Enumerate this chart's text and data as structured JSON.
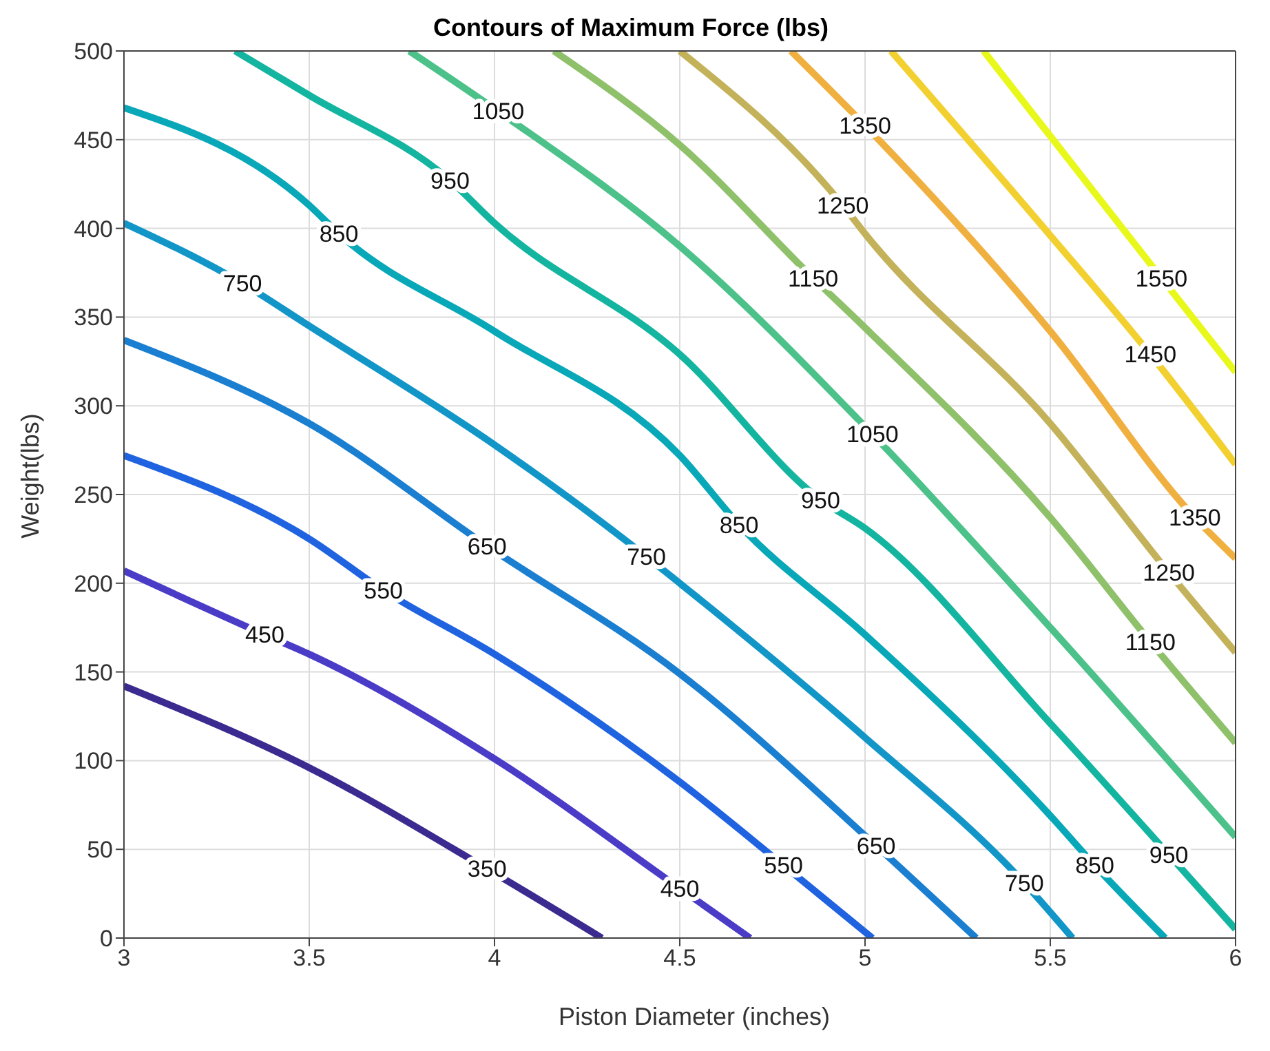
{
  "chart_data": {
    "type": "line",
    "title": "Contours of Maximum Force (lbs)",
    "xlabel": "Piston Diameter (inches)",
    "ylabel": "Weight(lbs)",
    "xlim": [
      3,
      6
    ],
    "xticks": [
      3,
      3.5,
      4,
      4.5,
      5,
      5.5,
      6
    ],
    "ylim": [
      0,
      500
    ],
    "yticks": [
      0,
      50,
      100,
      150,
      200,
      250,
      300,
      350,
      400,
      450,
      500
    ],
    "grid": true,
    "legend": false,
    "marker": "none",
    "line_style": "solid",
    "series": [
      {
        "color": "#3b2a8f",
        "x": [
          3,
          3.5,
          3.98,
          4.29
        ],
        "values": [
          142,
          96,
          39,
          0
        ]
      },
      {
        "color": "#4b3cc8",
        "x": [
          3,
          3.38,
          3.5,
          4,
          4.5,
          4.69
        ],
        "values": [
          207,
          171,
          160,
          101,
          28,
          0
        ]
      },
      {
        "color": "#1f63e0",
        "x": [
          3,
          3.5,
          3.7,
          4,
          4.5,
          4.78,
          5.02
        ],
        "values": [
          272,
          225,
          196,
          160,
          88,
          41,
          0
        ]
      },
      {
        "color": "#1a7fd0",
        "x": [
          3,
          3.5,
          3.98,
          4.5,
          5.03,
          5.3
        ],
        "values": [
          337,
          290,
          221,
          149,
          52,
          0
        ]
      },
      {
        "color": "#1296c8",
        "x": [
          3,
          3.32,
          3.5,
          4,
          4.41,
          4.5,
          5,
          5.43,
          5.56
        ],
        "values": [
          403,
          369,
          345,
          278,
          215,
          200,
          113,
          31,
          0
        ]
      },
      {
        "color": "#08a8b8",
        "x": [
          3,
          3.5,
          3.58,
          4,
          4.5,
          4.66,
          5,
          5.5,
          5.62,
          5.81
        ],
        "values": [
          468,
          413,
          397,
          342,
          272,
          233,
          171,
          69,
          41,
          0
        ]
      },
      {
        "color": "#14b5a0",
        "x": [
          3.3,
          3.5,
          3.88,
          4,
          4.5,
          4.88,
          5,
          5.5,
          5.82,
          6
        ],
        "values": [
          500,
          475,
          427,
          403,
          329,
          247,
          231,
          121,
          47,
          5
        ]
      },
      {
        "color": "#4cc28a",
        "x": [
          3.77,
          4.01,
          4.5,
          5.02,
          5.5,
          6
        ],
        "values": [
          500,
          466,
          390,
          284,
          175,
          57
        ]
      },
      {
        "color": "#8fc06a",
        "x": [
          4.16,
          4.5,
          4.86,
          5,
          5.5,
          5.77,
          6
        ],
        "values": [
          500,
          447,
          372,
          344,
          237,
          167,
          110
        ]
      },
      {
        "color": "#c3b25a",
        "x": [
          4.5,
          4.94,
          5,
          5.5,
          5.82,
          6
        ],
        "values": [
          500,
          413,
          397,
          290,
          206,
          161
        ]
      },
      {
        "color": "#f0b040",
        "x": [
          4.8,
          5,
          5.5,
          5.89,
          6
        ],
        "values": [
          500,
          458,
          342,
          237,
          214
        ]
      },
      {
        "color": "#f2d030",
        "x": [
          5.07,
          5.5,
          5.77,
          6
        ],
        "values": [
          500,
          396,
          329,
          267
        ]
      },
      {
        "color": "#e8f81a",
        "x": [
          5.32,
          5.5,
          5.8,
          6
        ],
        "values": [
          500,
          452,
          372,
          319
        ]
      }
    ],
    "annotations": [
      {
        "text": "350",
        "x": 3.98,
        "y": 39
      },
      {
        "text": "450",
        "x": 3.38,
        "y": 171
      },
      {
        "text": "450",
        "x": 4.5,
        "y": 28
      },
      {
        "text": "550",
        "x": 3.7,
        "y": 196
      },
      {
        "text": "550",
        "x": 4.78,
        "y": 41
      },
      {
        "text": "650",
        "x": 3.98,
        "y": 221
      },
      {
        "text": "650",
        "x": 5.03,
        "y": 52
      },
      {
        "text": "750",
        "x": 3.32,
        "y": 369
      },
      {
        "text": "750",
        "x": 4.41,
        "y": 215
      },
      {
        "text": "750",
        "x": 5.43,
        "y": 31
      },
      {
        "text": "850",
        "x": 3.58,
        "y": 397
      },
      {
        "text": "850",
        "x": 4.66,
        "y": 233
      },
      {
        "text": "850",
        "x": 5.62,
        "y": 41
      },
      {
        "text": "950",
        "x": 3.88,
        "y": 427
      },
      {
        "text": "950",
        "x": 4.88,
        "y": 247
      },
      {
        "text": "950",
        "x": 5.82,
        "y": 47
      },
      {
        "text": "1050",
        "x": 4.01,
        "y": 466
      },
      {
        "text": "1050",
        "x": 5.02,
        "y": 284
      },
      {
        "text": "1150",
        "x": 4.86,
        "y": 372
      },
      {
        "text": "1150",
        "x": 5.77,
        "y": 167
      },
      {
        "text": "1250",
        "x": 4.94,
        "y": 413
      },
      {
        "text": "1250",
        "x": 5.82,
        "y": 206
      },
      {
        "text": "1350",
        "x": 5.0,
        "y": 458
      },
      {
        "text": "1350",
        "x": 5.89,
        "y": 237
      },
      {
        "text": "1450",
        "x": 5.77,
        "y": 329
      },
      {
        "text": "1550",
        "x": 5.8,
        "y": 372
      }
    ]
  }
}
